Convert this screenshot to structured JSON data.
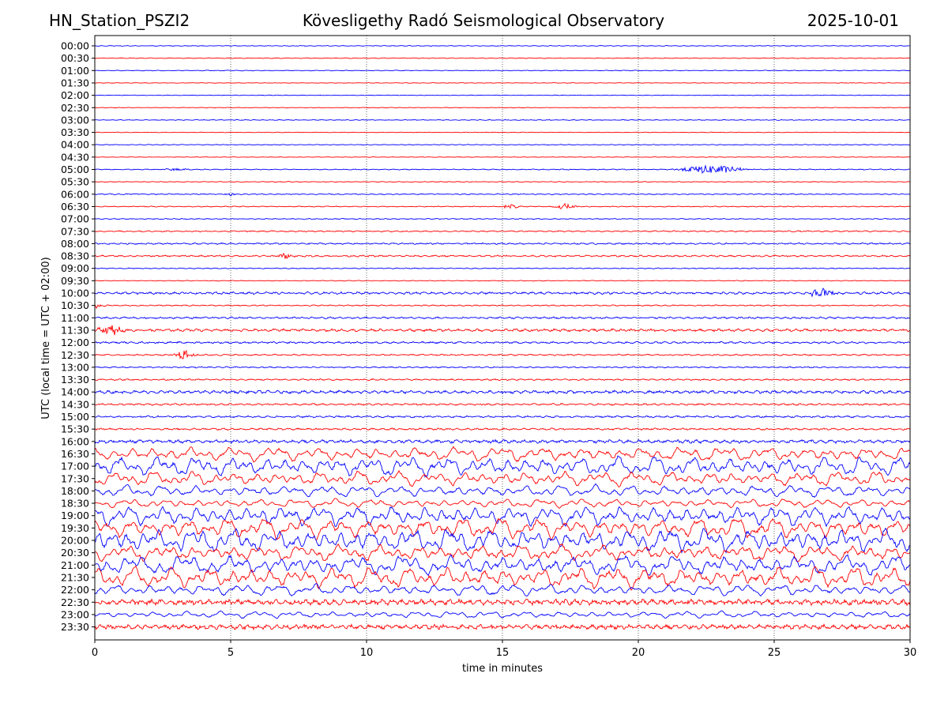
{
  "header": {
    "station": "HN_Station_PSZI2",
    "observatory": "Kövesligethy Radó Seismological Observatory",
    "date": "2025-10-01"
  },
  "chart_data": {
    "type": "line",
    "xlabel": "time in minutes",
    "ylabel": "UTC (local time = UTC + 02:00)",
    "xlim": [
      0,
      30
    ],
    "xticks": [
      0,
      5,
      10,
      15,
      20,
      25,
      30
    ],
    "grid": "vertical dotted at x ticks",
    "colors": {
      "even_rows": "#0000ff",
      "odd_rows": "#ff0000"
    },
    "rows": [
      {
        "label": "00:00",
        "amplitude": 0.04
      },
      {
        "label": "00:30",
        "amplitude": 0.04
      },
      {
        "label": "01:00",
        "amplitude": 0.04
      },
      {
        "label": "01:30",
        "amplitude": 0.03
      },
      {
        "label": "02:00",
        "amplitude": 0.03
      },
      {
        "label": "02:30",
        "amplitude": 0.03
      },
      {
        "label": "03:00",
        "amplitude": 0.04
      },
      {
        "label": "03:30",
        "amplitude": 0.03
      },
      {
        "label": "04:00",
        "amplitude": 0.04
      },
      {
        "label": "04:30",
        "amplitude": 0.03
      },
      {
        "label": "05:00",
        "amplitude": 0.05,
        "events": [
          {
            "x": 22.7,
            "amp": 0.45,
            "width": 1.2
          },
          {
            "x": 3.0,
            "amp": 0.12,
            "width": 0.5
          }
        ]
      },
      {
        "label": "05:30",
        "amplitude": 0.04
      },
      {
        "label": "06:00",
        "amplitude": 0.06,
        "events": [
          {
            "x": 5.0,
            "amp": 0.15,
            "width": 0.3
          }
        ]
      },
      {
        "label": "06:30",
        "amplitude": 0.05,
        "events": [
          {
            "x": 15.3,
            "amp": 0.25,
            "width": 0.3
          },
          {
            "x": 17.3,
            "amp": 0.3,
            "width": 0.4
          }
        ]
      },
      {
        "label": "07:00",
        "amplitude": 0.05
      },
      {
        "label": "07:30",
        "amplitude": 0.07
      },
      {
        "label": "08:00",
        "amplitude": 0.08
      },
      {
        "label": "08:30",
        "amplitude": 0.09,
        "events": [
          {
            "x": 7.0,
            "amp": 0.25,
            "width": 0.3
          }
        ]
      },
      {
        "label": "09:00",
        "amplitude": 0.05
      },
      {
        "label": "09:30",
        "amplitude": 0.04
      },
      {
        "label": "10:00",
        "amplitude": 0.12,
        "events": [
          {
            "x": 26.7,
            "amp": 0.4,
            "width": 0.6
          }
        ]
      },
      {
        "label": "10:30",
        "amplitude": 0.06,
        "events": [
          {
            "x": 0.15,
            "amp": 0.35,
            "width": 0.25
          }
        ]
      },
      {
        "label": "11:00",
        "amplitude": 0.1
      },
      {
        "label": "11:30",
        "amplitude": 0.14,
        "events": [
          {
            "x": 0.55,
            "amp": 0.6,
            "width": 0.5
          }
        ]
      },
      {
        "label": "12:00",
        "amplitude": 0.1
      },
      {
        "label": "12:30",
        "amplitude": 0.08,
        "events": [
          {
            "x": 3.3,
            "amp": 0.45,
            "width": 0.4
          }
        ]
      },
      {
        "label": "13:00",
        "amplitude": 0.07
      },
      {
        "label": "13:30",
        "amplitude": 0.08
      },
      {
        "label": "14:00",
        "amplitude": 0.16
      },
      {
        "label": "14:30",
        "amplitude": 0.1
      },
      {
        "label": "15:00",
        "amplitude": 0.1
      },
      {
        "label": "15:30",
        "amplitude": 0.1
      },
      {
        "label": "16:00",
        "amplitude": 0.18
      },
      {
        "label": "16:30",
        "amplitude": 0.75
      },
      {
        "label": "17:00",
        "amplitude": 1.0
      },
      {
        "label": "17:30",
        "amplitude": 0.75
      },
      {
        "label": "18:00",
        "amplitude": 0.6
      },
      {
        "label": "18:30",
        "amplitude": 0.45
      },
      {
        "label": "19:00",
        "amplitude": 1.0
      },
      {
        "label": "19:30",
        "amplitude": 1.1
      },
      {
        "label": "20:00",
        "amplitude": 1.2
      },
      {
        "label": "20:30",
        "amplitude": 0.85
      },
      {
        "label": "21:00",
        "amplitude": 1.0
      },
      {
        "label": "21:30",
        "amplitude": 1.1
      },
      {
        "label": "22:00",
        "amplitude": 0.6
      },
      {
        "label": "22:30",
        "amplitude": 0.3
      },
      {
        "label": "23:00",
        "amplitude": 0.35
      },
      {
        "label": "23:30",
        "amplitude": 0.25
      }
    ]
  }
}
